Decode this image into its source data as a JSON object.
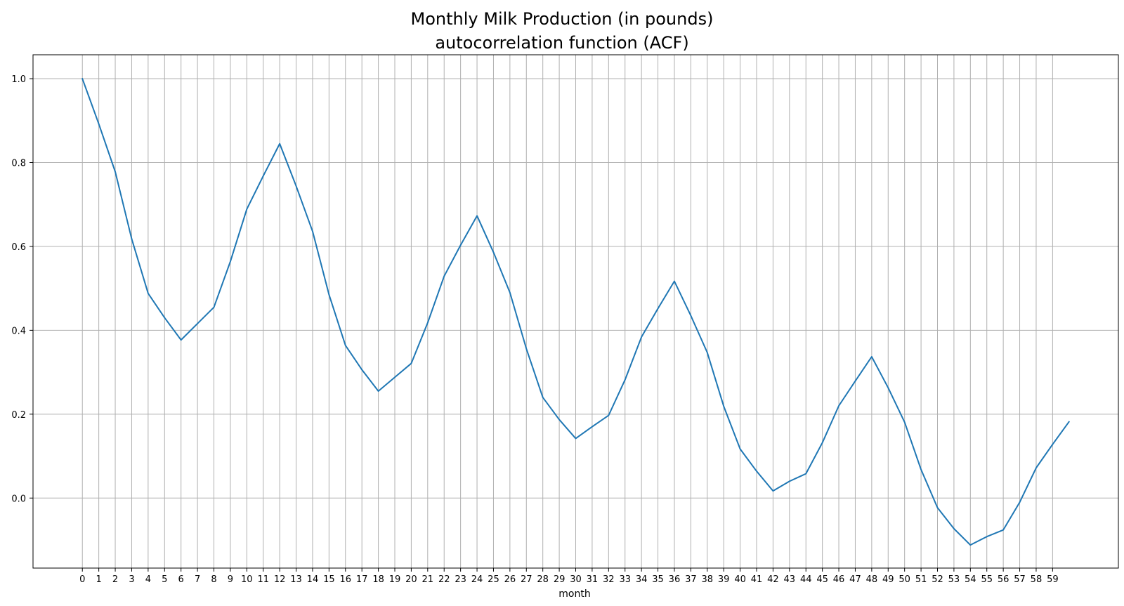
{
  "chart_data": {
    "type": "line",
    "title": "Monthly Milk Production (in pounds)",
    "subtitle": "autocorrelation function (ACF)",
    "xlabel": "month",
    "ylabel": "",
    "x_ticks": [
      0,
      1,
      2,
      3,
      4,
      5,
      6,
      7,
      8,
      9,
      10,
      11,
      12,
      13,
      14,
      15,
      16,
      17,
      18,
      19,
      20,
      21,
      22,
      23,
      24,
      25,
      26,
      27,
      28,
      29,
      30,
      31,
      32,
      33,
      34,
      35,
      36,
      37,
      38,
      39,
      40,
      41,
      42,
      43,
      44,
      45,
      46,
      47,
      48,
      49,
      50,
      51,
      52,
      53,
      54,
      55,
      56,
      57,
      58,
      59
    ],
    "y_ticks": [
      0.0,
      0.2,
      0.4,
      0.6,
      0.8,
      1.0
    ],
    "xlim": [
      -3,
      63
    ],
    "ylim": [
      -0.167,
      1.057
    ],
    "grid": true,
    "series": [
      {
        "color": "#1f77b4",
        "x": [
          0,
          1,
          2,
          3,
          4,
          5,
          6,
          7,
          8,
          9,
          10,
          11,
          12,
          13,
          14,
          15,
          16,
          17,
          18,
          19,
          20,
          21,
          22,
          23,
          24,
          25,
          26,
          27,
          28,
          29,
          30,
          31,
          32,
          33,
          34,
          35,
          36,
          37,
          38,
          39,
          40,
          41,
          42,
          43,
          44,
          45,
          46,
          47,
          48,
          49,
          50,
          51,
          52,
          53,
          54,
          55,
          56,
          57,
          58,
          59,
          60
        ],
        "values": [
          1.0,
          0.892,
          0.778,
          0.618,
          0.488,
          0.43,
          0.377,
          0.416,
          0.455,
          0.564,
          0.689,
          0.768,
          0.845,
          0.744,
          0.636,
          0.485,
          0.364,
          0.306,
          0.255,
          0.288,
          0.321,
          0.418,
          0.529,
          0.603,
          0.673,
          0.586,
          0.49,
          0.356,
          0.24,
          0.187,
          0.142,
          0.17,
          0.197,
          0.282,
          0.384,
          0.452,
          0.517,
          0.435,
          0.347,
          0.219,
          0.117,
          0.064,
          0.017,
          0.04,
          0.058,
          0.132,
          0.22,
          0.279,
          0.337,
          0.263,
          0.181,
          0.068,
          -0.023,
          -0.073,
          -0.112,
          -0.092,
          -0.076,
          -0.01,
          0.072,
          0.128,
          0.182
        ]
      }
    ]
  }
}
